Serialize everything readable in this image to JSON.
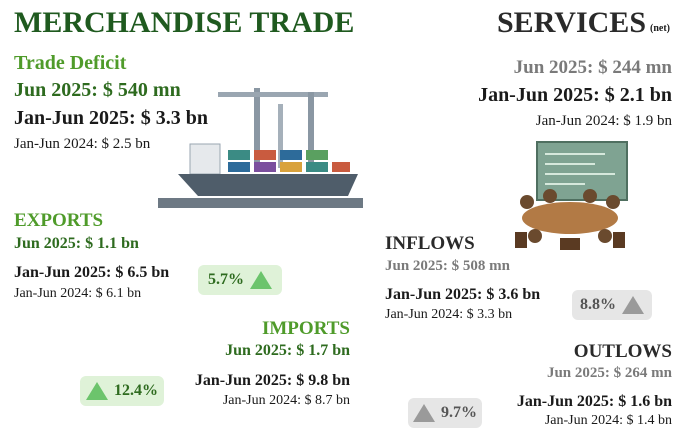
{
  "merchandise": {
    "title": "MERCHANDISE TRADE",
    "deficit": {
      "label": "Trade Deficit",
      "month": "Jun 2025: $ 540 mn",
      "ytd": "Jan-Jun 2025: $ 3.3 bn",
      "prev": "Jan-Jun 2024: $ 2.5 bn"
    },
    "exports": {
      "label": "EXPORTS",
      "month": "Jun 2025: $ 1.1 bn",
      "ytd": "Jan-Jun 2025: $ 6.5 bn",
      "prev": "Jan-Jun 2024: $ 6.1 bn",
      "growth": "5.7%"
    },
    "imports": {
      "label": "IMPORTS",
      "month": "Jun 2025: $ 1.7 bn",
      "ytd": "Jan-Jun 2025: $ 9.8 bn",
      "prev": "Jan-Jun 2024: $ 8.7 bn",
      "growth": "12.4%"
    }
  },
  "services": {
    "title": "SERVICES",
    "note": "(net)",
    "net": {
      "month": "Jun 2025: $ 244 mn",
      "ytd": "Jan-Jun 2025: $ 2.1 bn",
      "prev": "Jan-Jun 2024: $ 1.9 bn"
    },
    "inflows": {
      "label": "INFLOWS",
      "month": "Jun 2025: $ 508 mn",
      "ytd": "Jan-Jun 2025: $ 3.6 bn",
      "prev": "Jan-Jun 2024: $ 3.3 bn",
      "growth": "8.8%"
    },
    "outflows": {
      "label": "OUTLOWS",
      "month": "Jun 2025: $ 264 mn",
      "ytd": "Jan-Jun 2025: $ 1.6 bn",
      "prev": "Jan-Jun 2024: $ 1.4 bn",
      "growth": "9.7%"
    }
  }
}
